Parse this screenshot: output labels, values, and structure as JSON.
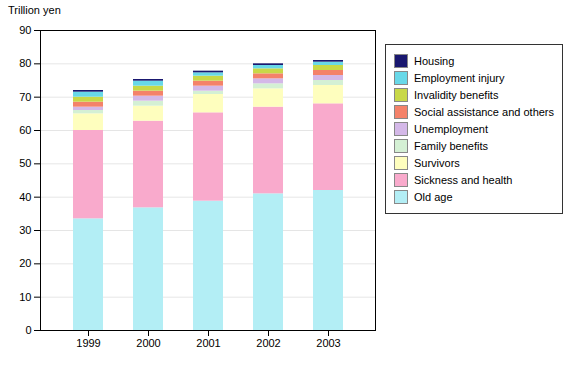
{
  "chart_data": {
    "type": "bar",
    "stacked": true,
    "ylabel": "Trillion yen",
    "categories": [
      "1999",
      "2000",
      "2001",
      "2002",
      "2003"
    ],
    "series": [
      {
        "name": "Old age",
        "color": "#b3eef5",
        "values": [
          33.5,
          36.8,
          38.8,
          41.0,
          42.0
        ]
      },
      {
        "name": "Sickness and health",
        "color": "#f9aacc",
        "values": [
          26.5,
          26.0,
          26.5,
          26.0,
          26.0
        ]
      },
      {
        "name": "Survivors",
        "color": "#fefebe",
        "values": [
          5.0,
          4.5,
          5.5,
          5.5,
          5.5
        ]
      },
      {
        "name": "Family benefits",
        "color": "#d4f0d4",
        "values": [
          1.0,
          1.5,
          1.0,
          1.5,
          1.5
        ]
      },
      {
        "name": "Unemployment",
        "color": "#d4b8e8",
        "values": [
          1.0,
          1.5,
          1.5,
          1.5,
          1.5
        ]
      },
      {
        "name": "Social assistance and others",
        "color": "#f4826a",
        "values": [
          1.5,
          1.5,
          1.5,
          1.5,
          1.5
        ]
      },
      {
        "name": "Invalidity benefits",
        "color": "#c8d848",
        "values": [
          1.5,
          1.5,
          1.5,
          1.5,
          1.5
        ]
      },
      {
        "name": "Employment injury",
        "color": "#68d8e8",
        "values": [
          1.5,
          1.5,
          1.0,
          1.0,
          1.0
        ]
      },
      {
        "name": "Housing",
        "color": "#1a1870",
        "values": [
          0.5,
          0.5,
          0.5,
          0.5,
          0.5
        ]
      }
    ],
    "ylim": [
      0,
      90
    ],
    "yticks": [
      0,
      10,
      20,
      30,
      40,
      50,
      60,
      70,
      80,
      90
    ],
    "grid": true,
    "legend": "right"
  }
}
